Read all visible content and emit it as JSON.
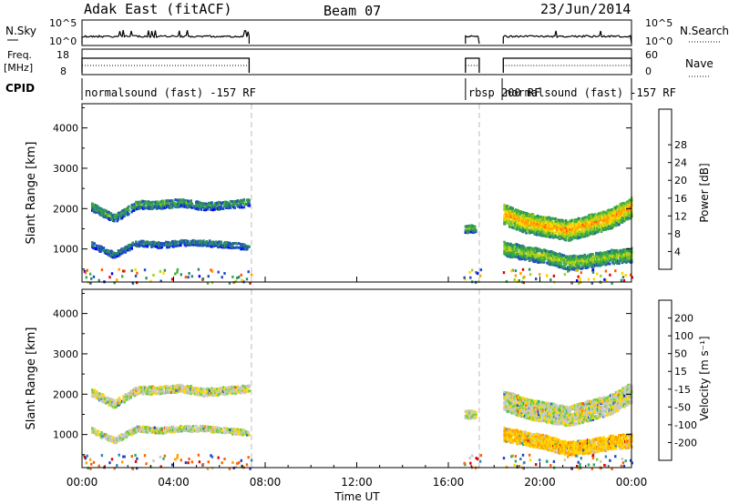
{
  "header": {
    "station": "Adak East (fitACF)",
    "beam": "Beam 07",
    "date": "23/Jun/2014"
  },
  "nsky_panel": {
    "left_label": "N.Sky",
    "right_label": "N.Search",
    "left_ticks": [
      "10^5",
      "10^0"
    ],
    "right_ticks": [
      "10^5",
      "10^0"
    ]
  },
  "freq_panel": {
    "left_label_line1": "Freq.",
    "left_label_line2": "[MHz]",
    "right_label": "Nave",
    "left_ticks": [
      "18",
      "8"
    ],
    "right_ticks": [
      "60",
      "0"
    ]
  },
  "cpid": {
    "label": "CPID",
    "segments": [
      {
        "start_hour": 0.0,
        "end_hour": 16.75,
        "text": "normalsound (fast) -157 RF"
      },
      {
        "start_hour": 16.75,
        "end_hour": 18.35,
        "text": "rbsp 200 RF"
      },
      {
        "start_hour": 18.35,
        "end_hour": 24.0,
        "text": "normalsound (fast) -157 RF"
      }
    ]
  },
  "power_colorbar": {
    "label": "Power [dB]",
    "ticks": [
      "4",
      "8",
      "12",
      "16",
      "20",
      "24",
      "28"
    ],
    "colors": [
      "#0000ff",
      "#1f4fbf",
      "#2e8b6a",
      "#3fae3f",
      "#a0d020",
      "#ffd700",
      "#ff9f00",
      "#ff5a00",
      "#e00000"
    ]
  },
  "velocity_colorbar": {
    "label": "Velocity [m s⁻¹]",
    "ticks": [
      "200",
      "100",
      "50",
      "15",
      "-15",
      "-50",
      "-100",
      "-200"
    ],
    "colors": [
      "#1f3fbf",
      "#2f7fbf",
      "#2faa6a",
      "#6fd040",
      "#c8c8c8",
      "#ffd700",
      "#ffa000",
      "#ff6000",
      "#e00000"
    ]
  },
  "chart_data": [
    {
      "type": "heatmap",
      "panel": "power",
      "xlabel": "",
      "ylabel": "Slant Range [km]",
      "xlim": [
        0,
        24
      ],
      "ylim": [
        180,
        4600
      ],
      "yticks": [
        1000,
        2000,
        3000,
        4000
      ],
      "data_gaps_hours": [
        [
          7.4,
          16.6
        ],
        [
          17.4,
          18.35
        ]
      ],
      "echo_bands": [
        {
          "start_hour": 0.4,
          "end_hour": 7.3,
          "center_km": [
            2100,
            1800,
            2150,
            2150,
            2200,
            2100,
            2150,
            2200
          ],
          "width_km": 200,
          "level_db": 8
        },
        {
          "start_hour": 0.4,
          "end_hour": 7.3,
          "center_km": [
            1150,
            900,
            1200,
            1150,
            1200,
            1200,
            1150,
            1100
          ],
          "width_km": 150,
          "level_db": 6
        },
        {
          "start_hour": 16.7,
          "end_hour": 17.2,
          "center_km": [
            1550,
            1550
          ],
          "width_km": 200,
          "level_db": 10
        },
        {
          "start_hour": 18.4,
          "end_hour": 24.0,
          "center_km": [
            1900,
            1700,
            1600,
            1500,
            1650,
            1800,
            2100
          ],
          "width_km": 500,
          "level_db": 18
        },
        {
          "start_hour": 18.4,
          "end_hour": 24.0,
          "center_km": [
            1050,
            950,
            850,
            700,
            750,
            850,
            900
          ],
          "width_km": 350,
          "level_db": 12
        }
      ]
    },
    {
      "type": "heatmap",
      "panel": "velocity",
      "xlabel": "Time UT",
      "ylabel": "Slant Range [km]",
      "xlim": [
        0,
        24
      ],
      "ylim": [
        180,
        4600
      ],
      "xticks": [
        "00:00",
        "04:00",
        "08:00",
        "12:00",
        "16:00",
        "20:00",
        "00:00"
      ],
      "yticks": [
        1000,
        2000,
        3000,
        4000
      ],
      "data_gaps_hours": [
        [
          7.4,
          16.6
        ],
        [
          17.4,
          18.35
        ]
      ],
      "echo_bands": [
        {
          "start_hour": 0.4,
          "end_hour": 7.3,
          "center_km": [
            2100,
            1800,
            2150,
            2150,
            2200,
            2100,
            2150,
            2200
          ],
          "width_km": 200,
          "velocity_ms": 0
        },
        {
          "start_hour": 0.4,
          "end_hour": 7.3,
          "center_km": [
            1150,
            900,
            1200,
            1150,
            1200,
            1200,
            1150,
            1100
          ],
          "width_km": 150,
          "velocity_ms": 0
        },
        {
          "start_hour": 16.7,
          "end_hour": 17.2,
          "center_km": [
            1550,
            1550
          ],
          "width_km": 200,
          "velocity_ms": 0
        },
        {
          "start_hour": 18.4,
          "end_hour": 24.0,
          "center_km": [
            1900,
            1700,
            1600,
            1500,
            1650,
            1800,
            2100
          ],
          "width_km": 500,
          "velocity_ms": 0
        },
        {
          "start_hour": 18.4,
          "end_hour": 24.0,
          "center_km": [
            1050,
            950,
            850,
            700,
            750,
            850,
            900
          ],
          "width_km": 350,
          "velocity_ms": -40
        }
      ]
    }
  ]
}
